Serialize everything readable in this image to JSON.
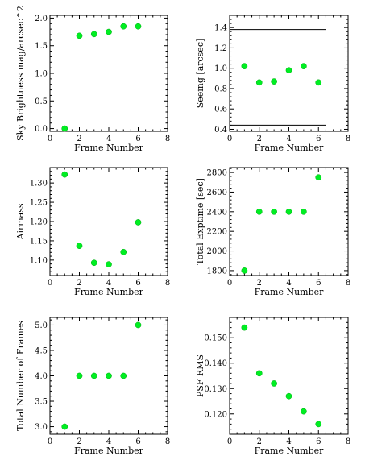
{
  "chart_data": [
    {
      "type": "scatter",
      "title": "",
      "xlabel": "Frame Number",
      "ylabel": "Sky Brightness mag/arcsec^2",
      "xlim": [
        0,
        8
      ],
      "ylim": [
        -0.05,
        2.05
      ],
      "xticks": [
        0,
        2,
        4,
        6,
        8
      ],
      "yticks": [
        0.0,
        0.5,
        1.0,
        1.5,
        2.0
      ],
      "ytick_labels": [
        "0.0",
        "0.5",
        "1.0",
        "1.5",
        "2.0"
      ],
      "x": [
        1,
        2,
        3,
        4,
        5,
        6
      ],
      "y": [
        0.0,
        1.68,
        1.71,
        1.75,
        1.85,
        1.85
      ],
      "color": "#00ee22"
    },
    {
      "type": "scatter",
      "title": "",
      "xlabel": "Frame Number",
      "ylabel": "Seeing [arcsec]",
      "xlim": [
        0,
        8
      ],
      "ylim": [
        0.38,
        1.52
      ],
      "xticks": [
        0,
        2,
        4,
        6,
        8
      ],
      "yticks": [
        0.4,
        0.6,
        0.8,
        1.0,
        1.2,
        1.4
      ],
      "ytick_labels": [
        "0.4",
        "0.6",
        "0.8",
        "1.0",
        "1.2",
        "1.4"
      ],
      "x": [
        1,
        2,
        3,
        4,
        5,
        6
      ],
      "y": [
        1.02,
        0.86,
        0.87,
        0.98,
        1.02,
        0.86
      ],
      "reference_lines": [
        {
          "y": 1.38,
          "x_range": [
            0,
            6.5
          ]
        },
        {
          "y": 0.44,
          "x_range": [
            0,
            6.5
          ]
        }
      ],
      "color": "#00ee22"
    },
    {
      "type": "scatter",
      "title": "",
      "xlabel": "Frame Number",
      "ylabel": "Airmass",
      "xlim": [
        0,
        8
      ],
      "ylim": [
        1.06,
        1.34
      ],
      "xticks": [
        0,
        2,
        4,
        6,
        8
      ],
      "yticks": [
        1.1,
        1.15,
        1.2,
        1.25,
        1.3
      ],
      "ytick_labels": [
        "1.10",
        "1.15",
        "1.20",
        "1.25",
        "1.30"
      ],
      "x": [
        1,
        2,
        3,
        4,
        5,
        6
      ],
      "y": [
        1.322,
        1.137,
        1.093,
        1.089,
        1.121,
        1.198
      ],
      "color": "#00ee22"
    },
    {
      "type": "scatter",
      "title": "",
      "xlabel": "Frame Number",
      "ylabel": "Total Exptime [sec]",
      "xlim": [
        0,
        8
      ],
      "ylim": [
        1750,
        2850
      ],
      "xticks": [
        0,
        2,
        4,
        6,
        8
      ],
      "yticks": [
        1800,
        2000,
        2200,
        2400,
        2600,
        2800
      ],
      "ytick_labels": [
        "1800",
        "2000",
        "2200",
        "2400",
        "2600",
        "2800"
      ],
      "x": [
        1,
        2,
        3,
        4,
        5,
        6
      ],
      "y": [
        1800,
        2400,
        2400,
        2400,
        2400,
        2750
      ],
      "color": "#00ee22"
    },
    {
      "type": "scatter",
      "title": "",
      "xlabel": "Frame Number",
      "ylabel": "Total Number of Frames",
      "xlim": [
        0,
        8
      ],
      "ylim": [
        2.85,
        5.15
      ],
      "xticks": [
        0,
        2,
        4,
        6,
        8
      ],
      "yticks": [
        3.0,
        3.5,
        4.0,
        4.5,
        5.0
      ],
      "ytick_labels": [
        "3.0",
        "3.5",
        "4.0",
        "4.5",
        "5.0"
      ],
      "x": [
        1,
        2,
        3,
        4,
        5,
        6
      ],
      "y": [
        3.0,
        4.0,
        4.0,
        4.0,
        4.0,
        5.0
      ],
      "color": "#00ee22"
    },
    {
      "type": "scatter",
      "title": "",
      "xlabel": "Frame Number",
      "ylabel": "PSF RMS",
      "xlim": [
        0,
        8
      ],
      "ylim": [
        0.112,
        0.158
      ],
      "xticks": [
        0,
        2,
        4,
        6,
        8
      ],
      "yticks": [
        0.12,
        0.13,
        0.14,
        0.15
      ],
      "ytick_labels": [
        "0.120",
        "0.130",
        "0.140",
        "0.150"
      ],
      "x": [
        1,
        2,
        3,
        4,
        5,
        6
      ],
      "y": [
        0.154,
        0.136,
        0.132,
        0.127,
        0.121,
        0.116
      ],
      "color": "#00ee22"
    }
  ]
}
